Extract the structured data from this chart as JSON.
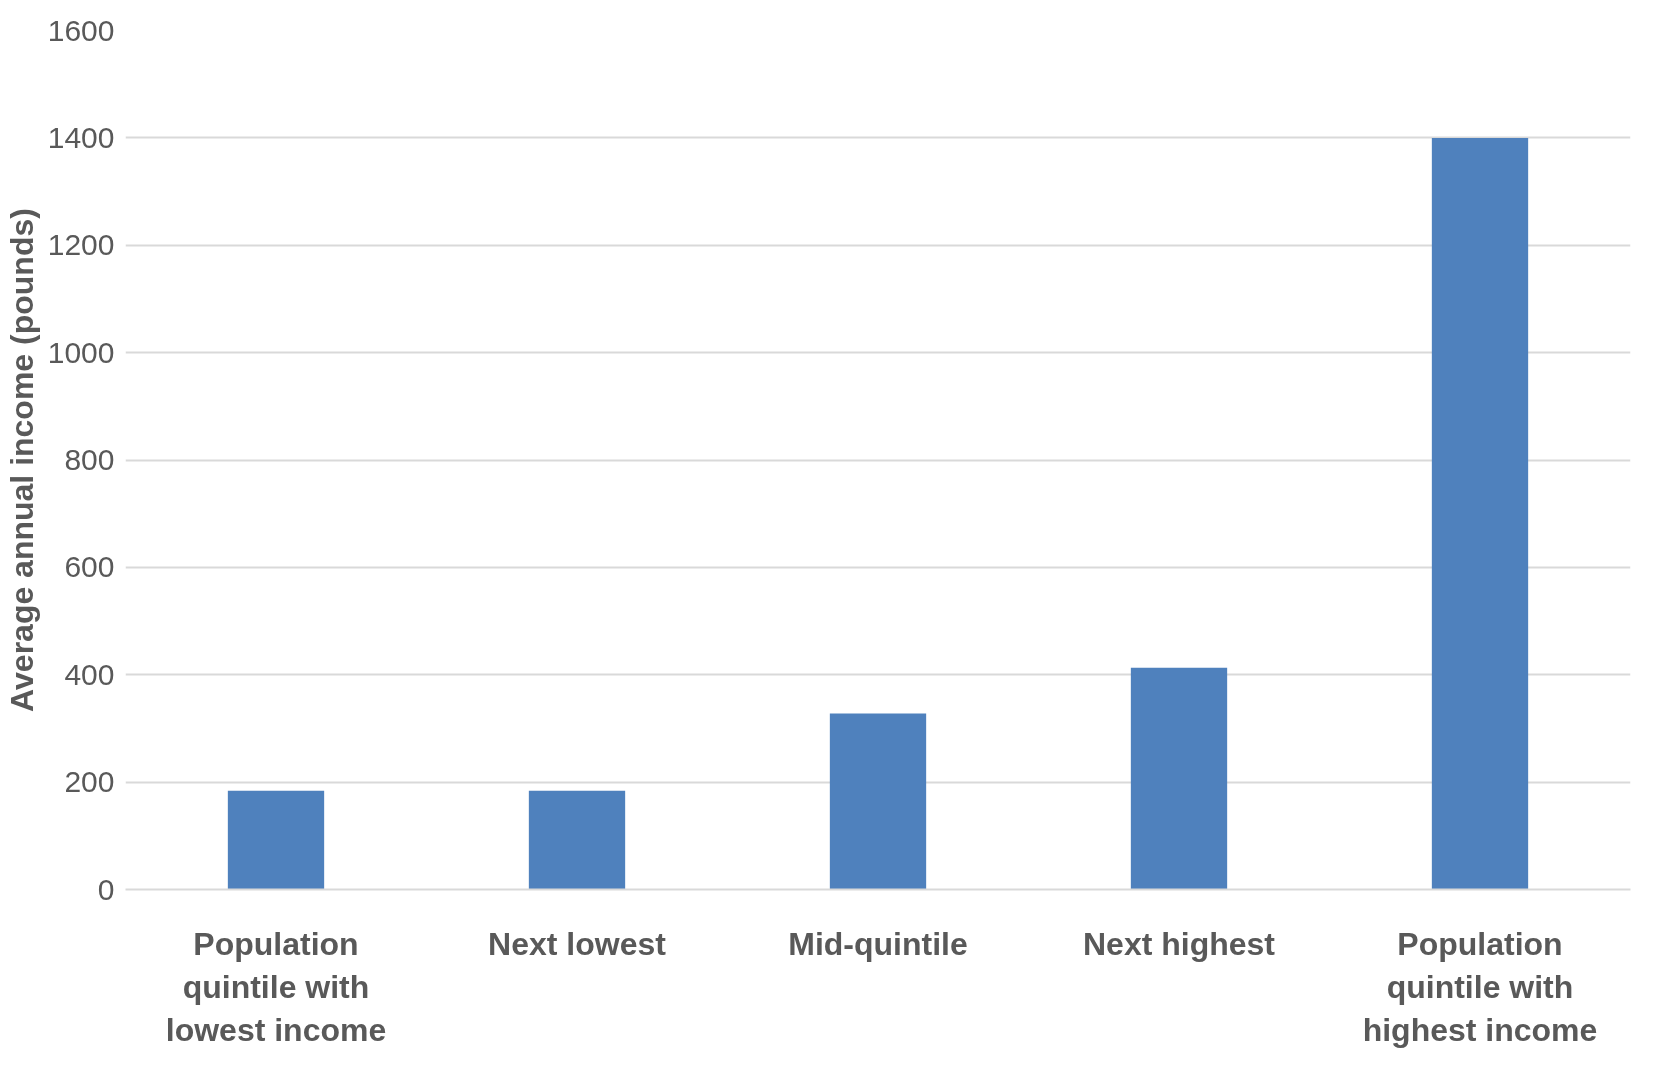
{
  "chart_data": {
    "type": "bar",
    "ylabel": "Average annual income (pounds)",
    "categories": [
      "Population quintile with lowest income",
      "Next lowest",
      "Mid-quintile",
      "Next highest",
      "Population quintile with highest income"
    ],
    "values": [
      184,
      184,
      328,
      413,
      1400
    ],
    "color": "#4f81bd",
    "ylim": [
      0,
      1600
    ],
    "yticks": [
      0,
      200,
      400,
      600,
      800,
      1000,
      1200,
      1400,
      1600
    ],
    "grid": "y"
  }
}
